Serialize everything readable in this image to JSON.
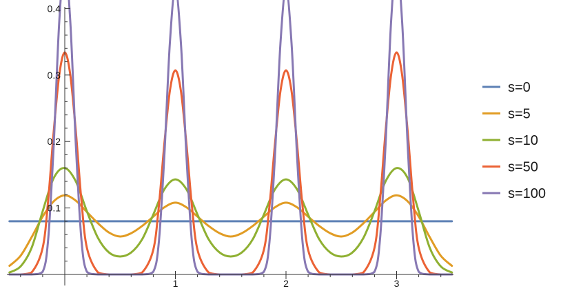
{
  "chart_data": {
    "type": "line",
    "title": "",
    "xlabel": "",
    "ylabel": "",
    "xlim": [
      -0.52,
      3.52
    ],
    "ylim": [
      0.0,
      0.475
    ],
    "x_ticks": [
      1,
      2,
      3
    ],
    "y_ticks": [
      0.1,
      0.2,
      0.3,
      0.4
    ],
    "x_tick_labels": [
      "1",
      "2",
      "3"
    ],
    "y_tick_labels": [
      "0.1",
      "0.2",
      "0.3",
      "0.4"
    ],
    "grid": false,
    "legend_position": "right",
    "series": [
      {
        "name": "s=0",
        "color": "#5e81b5",
        "x": [
          -0.5,
          0,
          0.5,
          1,
          1.5,
          2,
          2.5,
          3,
          3.5
        ],
        "y": [
          0.08,
          0.08,
          0.08,
          0.08,
          0.08,
          0.08,
          0.08,
          0.08,
          0.08
        ]
      },
      {
        "name": "s=5",
        "color": "#e19c24",
        "x": [
          -0.5,
          -0.4,
          -0.3,
          -0.2,
          -0.1,
          0,
          0.1,
          0.2,
          0.3,
          0.4,
          0.5,
          0.6,
          0.7,
          0.8,
          0.9,
          1,
          1.1,
          1.2,
          1.3,
          1.4,
          1.5,
          1.6,
          1.7,
          1.8,
          1.9,
          2,
          2.1,
          2.2,
          2.3,
          2.4,
          2.5,
          2.6,
          2.7,
          2.8,
          2.9,
          3,
          3.1,
          3.2,
          3.3,
          3.4,
          3.5
        ],
        "y": [
          0.013,
          0.028,
          0.056,
          0.087,
          0.11,
          0.119,
          0.111,
          0.094,
          0.077,
          0.063,
          0.057,
          0.062,
          0.073,
          0.087,
          0.101,
          0.108,
          0.101,
          0.087,
          0.073,
          0.062,
          0.057,
          0.062,
          0.073,
          0.087,
          0.101,
          0.108,
          0.101,
          0.087,
          0.073,
          0.062,
          0.057,
          0.063,
          0.077,
          0.094,
          0.111,
          0.119,
          0.11,
          0.087,
          0.056,
          0.028,
          0.013
        ]
      },
      {
        "name": "s=10",
        "color": "#8fb032",
        "x": [
          -0.5,
          -0.4,
          -0.3,
          -0.2,
          -0.1,
          0,
          0.1,
          0.2,
          0.3,
          0.4,
          0.5,
          0.6,
          0.7,
          0.8,
          0.9,
          1,
          1.1,
          1.2,
          1.3,
          1.4,
          1.5,
          1.6,
          1.7,
          1.8,
          1.9,
          2,
          2.1,
          2.2,
          2.3,
          2.4,
          2.5,
          2.6,
          2.7,
          2.8,
          2.9,
          3,
          3.1,
          3.2,
          3.3,
          3.4,
          3.5
        ],
        "y": [
          0.003,
          0.012,
          0.04,
          0.095,
          0.145,
          0.16,
          0.14,
          0.095,
          0.055,
          0.033,
          0.027,
          0.033,
          0.053,
          0.09,
          0.128,
          0.143,
          0.128,
          0.09,
          0.053,
          0.033,
          0.027,
          0.033,
          0.053,
          0.09,
          0.128,
          0.143,
          0.128,
          0.09,
          0.053,
          0.033,
          0.027,
          0.033,
          0.055,
          0.095,
          0.14,
          0.16,
          0.145,
          0.095,
          0.04,
          0.012,
          0.003
        ]
      },
      {
        "name": "s=50",
        "color": "#eb6235",
        "x": [
          -0.5,
          -0.4,
          -0.3,
          -0.2,
          -0.15,
          -0.1,
          -0.05,
          0,
          0.05,
          0.1,
          0.15,
          0.2,
          0.3,
          0.4,
          0.5,
          0.6,
          0.7,
          0.8,
          0.85,
          0.9,
          0.95,
          1,
          1.05,
          1.1,
          1.15,
          1.2,
          1.3,
          1.4,
          1.5,
          1.6,
          1.7,
          1.8,
          1.85,
          1.9,
          1.95,
          2,
          2.05,
          2.1,
          2.15,
          2.2,
          2.3,
          2.4,
          2.5,
          2.6,
          2.7,
          2.8,
          2.85,
          2.9,
          2.95,
          3,
          3.05,
          3.1,
          3.15,
          3.2,
          3.3,
          3.4,
          3.5
        ],
        "y": [
          0.0,
          0.0,
          0.003,
          0.04,
          0.112,
          0.215,
          0.3,
          0.334,
          0.3,
          0.215,
          0.112,
          0.04,
          0.003,
          0.0,
          0.0,
          0.0,
          0.003,
          0.037,
          0.102,
          0.196,
          0.276,
          0.307,
          0.276,
          0.196,
          0.102,
          0.037,
          0.003,
          0.0,
          0.0,
          0.0,
          0.003,
          0.037,
          0.102,
          0.196,
          0.276,
          0.307,
          0.276,
          0.196,
          0.102,
          0.037,
          0.003,
          0.0,
          0.0,
          0.0,
          0.003,
          0.04,
          0.112,
          0.215,
          0.3,
          0.334,
          0.3,
          0.215,
          0.112,
          0.04,
          0.003,
          0.0,
          0.0
        ]
      },
      {
        "name": "s=100",
        "color": "#8778b3",
        "x": [
          -0.5,
          -0.3,
          -0.2,
          -0.15,
          -0.1,
          -0.05,
          0,
          0.05,
          0.1,
          0.15,
          0.2,
          0.3,
          0.5,
          0.7,
          0.8,
          0.85,
          0.9,
          0.95,
          1,
          1.05,
          1.1,
          1.15,
          1.2,
          1.3,
          1.5,
          1.7,
          1.8,
          1.85,
          1.9,
          1.95,
          2,
          2.05,
          2.1,
          2.15,
          2.2,
          2.3,
          2.5,
          2.7,
          2.8,
          2.85,
          2.9,
          2.95,
          3,
          3.05,
          3.1,
          3.15,
          3.2,
          3.3,
          3.5
        ],
        "y": [
          0.0,
          0.0,
          0.004,
          0.053,
          0.195,
          0.38,
          0.47,
          0.38,
          0.195,
          0.053,
          0.004,
          0.0,
          0.0,
          0.0,
          0.004,
          0.048,
          0.178,
          0.348,
          0.43,
          0.348,
          0.178,
          0.048,
          0.004,
          0.0,
          0.0,
          0.0,
          0.004,
          0.048,
          0.178,
          0.348,
          0.43,
          0.348,
          0.178,
          0.048,
          0.004,
          0.0,
          0.0,
          0.0,
          0.004,
          0.053,
          0.195,
          0.38,
          0.47,
          0.38,
          0.195,
          0.053,
          0.004,
          0.0,
          0.0
        ]
      }
    ]
  }
}
